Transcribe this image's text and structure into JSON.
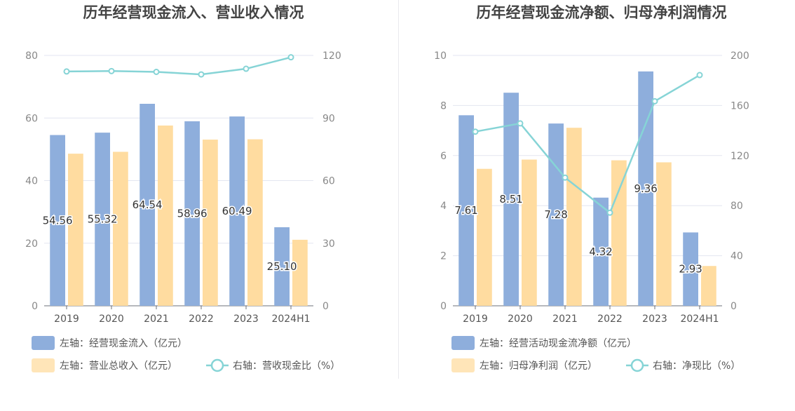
{
  "chart_data": [
    {
      "type": "bar",
      "title": "历年经营现金流入、营业收入情况",
      "categories": [
        "2019",
        "2020",
        "2021",
        "2022",
        "2023",
        "2024H1"
      ],
      "y_left_ticks": [
        "0",
        "20",
        "40",
        "60",
        "80"
      ],
      "y_right_ticks": [
        "0",
        "30",
        "60",
        "90",
        "120"
      ],
      "ylim_left": [
        0,
        80
      ],
      "ylim_right": [
        0,
        120
      ],
      "series": [
        {
          "name": "左轴：经营现金流入（亿元）",
          "kind": "bar",
          "axis": "left",
          "color": "#8eaedc",
          "values": [
            54.56,
            55.32,
            64.54,
            58.96,
            60.49,
            25.1
          ],
          "labels": [
            "54.56",
            "55.32",
            "64.54",
            "58.96",
            "60.49",
            "25.10"
          ]
        },
        {
          "name": "左轴：营业总收入（亿元）",
          "kind": "bar",
          "axis": "left",
          "color": "#ffdca0",
          "values": [
            48.6,
            49.2,
            57.6,
            53.1,
            53.2,
            21.1
          ]
        },
        {
          "name": "右轴：营收现金比（%）",
          "kind": "line",
          "axis": "right",
          "color": "#86d4d6",
          "values": [
            112.3,
            112.5,
            112.1,
            110.9,
            113.6,
            119.1
          ]
        }
      ],
      "legend_placement": "bottom",
      "grid": true
    },
    {
      "type": "bar",
      "title": "历年经营现金流净额、归母净利润情况",
      "categories": [
        "2019",
        "2020",
        "2021",
        "2022",
        "2023",
        "2024H1"
      ],
      "y_left_ticks": [
        "0",
        "2",
        "4",
        "6",
        "8",
        "10"
      ],
      "y_right_ticks": [
        "0",
        "40",
        "80",
        "120",
        "160",
        "200"
      ],
      "ylim_left": [
        0,
        10
      ],
      "ylim_right": [
        0,
        200
      ],
      "series": [
        {
          "name": "左轴：经营活动现金流净额（亿元）",
          "kind": "bar",
          "axis": "left",
          "color": "#8eaedc",
          "values": [
            7.61,
            8.51,
            7.28,
            4.32,
            9.36,
            2.93
          ],
          "labels": [
            "7.61",
            "8.51",
            "7.28",
            "4.32",
            "9.36",
            "2.93"
          ]
        },
        {
          "name": "左轴：归母净利润（亿元）",
          "kind": "bar",
          "axis": "left",
          "color": "#ffdca0",
          "values": [
            5.47,
            5.84,
            7.11,
            5.81,
            5.73,
            1.59
          ]
        },
        {
          "name": "右轴：净现比（%）",
          "kind": "line",
          "axis": "right",
          "color": "#86d4d6",
          "values": [
            139.1,
            145.7,
            102.4,
            74.4,
            163.4,
            184.3
          ]
        }
      ],
      "legend_placement": "bottom",
      "grid": true
    }
  ]
}
